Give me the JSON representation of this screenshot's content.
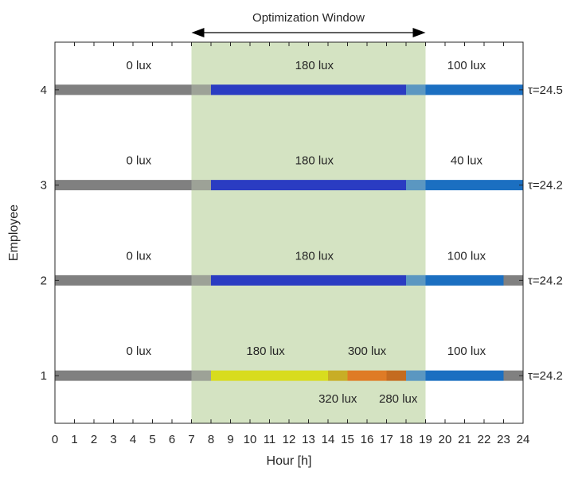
{
  "chart_data": {
    "type": "bar",
    "orientation": "horizontal",
    "xlabel": "Hour [h]",
    "ylabel": "Employee",
    "xlim": [
      0,
      24
    ],
    "ylim": [
      0.5,
      4.5
    ],
    "xticks": [
      "0",
      "1",
      "2",
      "3",
      "4",
      "5",
      "6",
      "7",
      "8",
      "9",
      "10",
      "11",
      "12",
      "13",
      "14",
      "15",
      "16",
      "17",
      "18",
      "19",
      "20",
      "21",
      "22",
      "23",
      "24"
    ],
    "yticks": [
      "1",
      "2",
      "3",
      "4"
    ],
    "grid": false,
    "optimization_window": {
      "label": "Optimization Window",
      "start": 7,
      "end": 19,
      "color": "#d4e3c2"
    },
    "employees": [
      {
        "id": 1,
        "tick": "1",
        "tau": "τ=24.2",
        "segments": [
          {
            "start": 0,
            "end": 8,
            "color": "#808080"
          },
          {
            "start": 8,
            "end": 14,
            "color": "#d8dc1e"
          },
          {
            "start": 14,
            "end": 15,
            "color": "#c8ad26"
          },
          {
            "start": 15,
            "end": 17,
            "color": "#df7b25"
          },
          {
            "start": 17,
            "end": 18,
            "color": "#c46b20"
          },
          {
            "start": 18,
            "end": 23,
            "color": "#1b6fc1"
          },
          {
            "start": 23,
            "end": 24,
            "color": "#808080"
          }
        ],
        "labels": [
          {
            "text": "0 lux",
            "x": 4.3,
            "pos": "above"
          },
          {
            "text": "180 lux",
            "x": 10.8,
            "pos": "above"
          },
          {
            "text": "300 lux",
            "x": 16.0,
            "pos": "above"
          },
          {
            "text": "100 lux",
            "x": 21.1,
            "pos": "above"
          },
          {
            "text": "320 lux",
            "x": 14.5,
            "pos": "below"
          },
          {
            "text": "280 lux",
            "x": 17.6,
            "pos": "below"
          }
        ]
      },
      {
        "id": 2,
        "tick": "2",
        "tau": "τ=24.2",
        "segments": [
          {
            "start": 0,
            "end": 8,
            "color": "#808080"
          },
          {
            "start": 8,
            "end": 18,
            "color": "#2a3cc2"
          },
          {
            "start": 18,
            "end": 23,
            "color": "#1b6fc1"
          },
          {
            "start": 23,
            "end": 24,
            "color": "#808080"
          }
        ],
        "labels": [
          {
            "text": "0 lux",
            "x": 4.3,
            "pos": "above"
          },
          {
            "text": "180 lux",
            "x": 13.3,
            "pos": "above"
          },
          {
            "text": "100 lux",
            "x": 21.1,
            "pos": "above"
          }
        ]
      },
      {
        "id": 3,
        "tick": "3",
        "tau": "τ=24.2",
        "segments": [
          {
            "start": 0,
            "end": 8,
            "color": "#808080"
          },
          {
            "start": 8,
            "end": 18,
            "color": "#2a3cc2"
          },
          {
            "start": 18,
            "end": 24,
            "color": "#1b6fc1"
          }
        ],
        "labels": [
          {
            "text": "0 lux",
            "x": 4.3,
            "pos": "above"
          },
          {
            "text": "180 lux",
            "x": 13.3,
            "pos": "above"
          },
          {
            "text": "40 lux",
            "x": 21.1,
            "pos": "above"
          }
        ]
      },
      {
        "id": 4,
        "tick": "4",
        "tau": "τ=24.5",
        "segments": [
          {
            "start": 0,
            "end": 8,
            "color": "#808080"
          },
          {
            "start": 8,
            "end": 18,
            "color": "#2a3cc2"
          },
          {
            "start": 18,
            "end": 24,
            "color": "#1b6fc1"
          }
        ],
        "labels": [
          {
            "text": "0 lux",
            "x": 4.3,
            "pos": "above"
          },
          {
            "text": "180 lux",
            "x": 13.3,
            "pos": "above"
          },
          {
            "text": "100 lux",
            "x": 21.1,
            "pos": "above"
          }
        ]
      }
    ]
  }
}
